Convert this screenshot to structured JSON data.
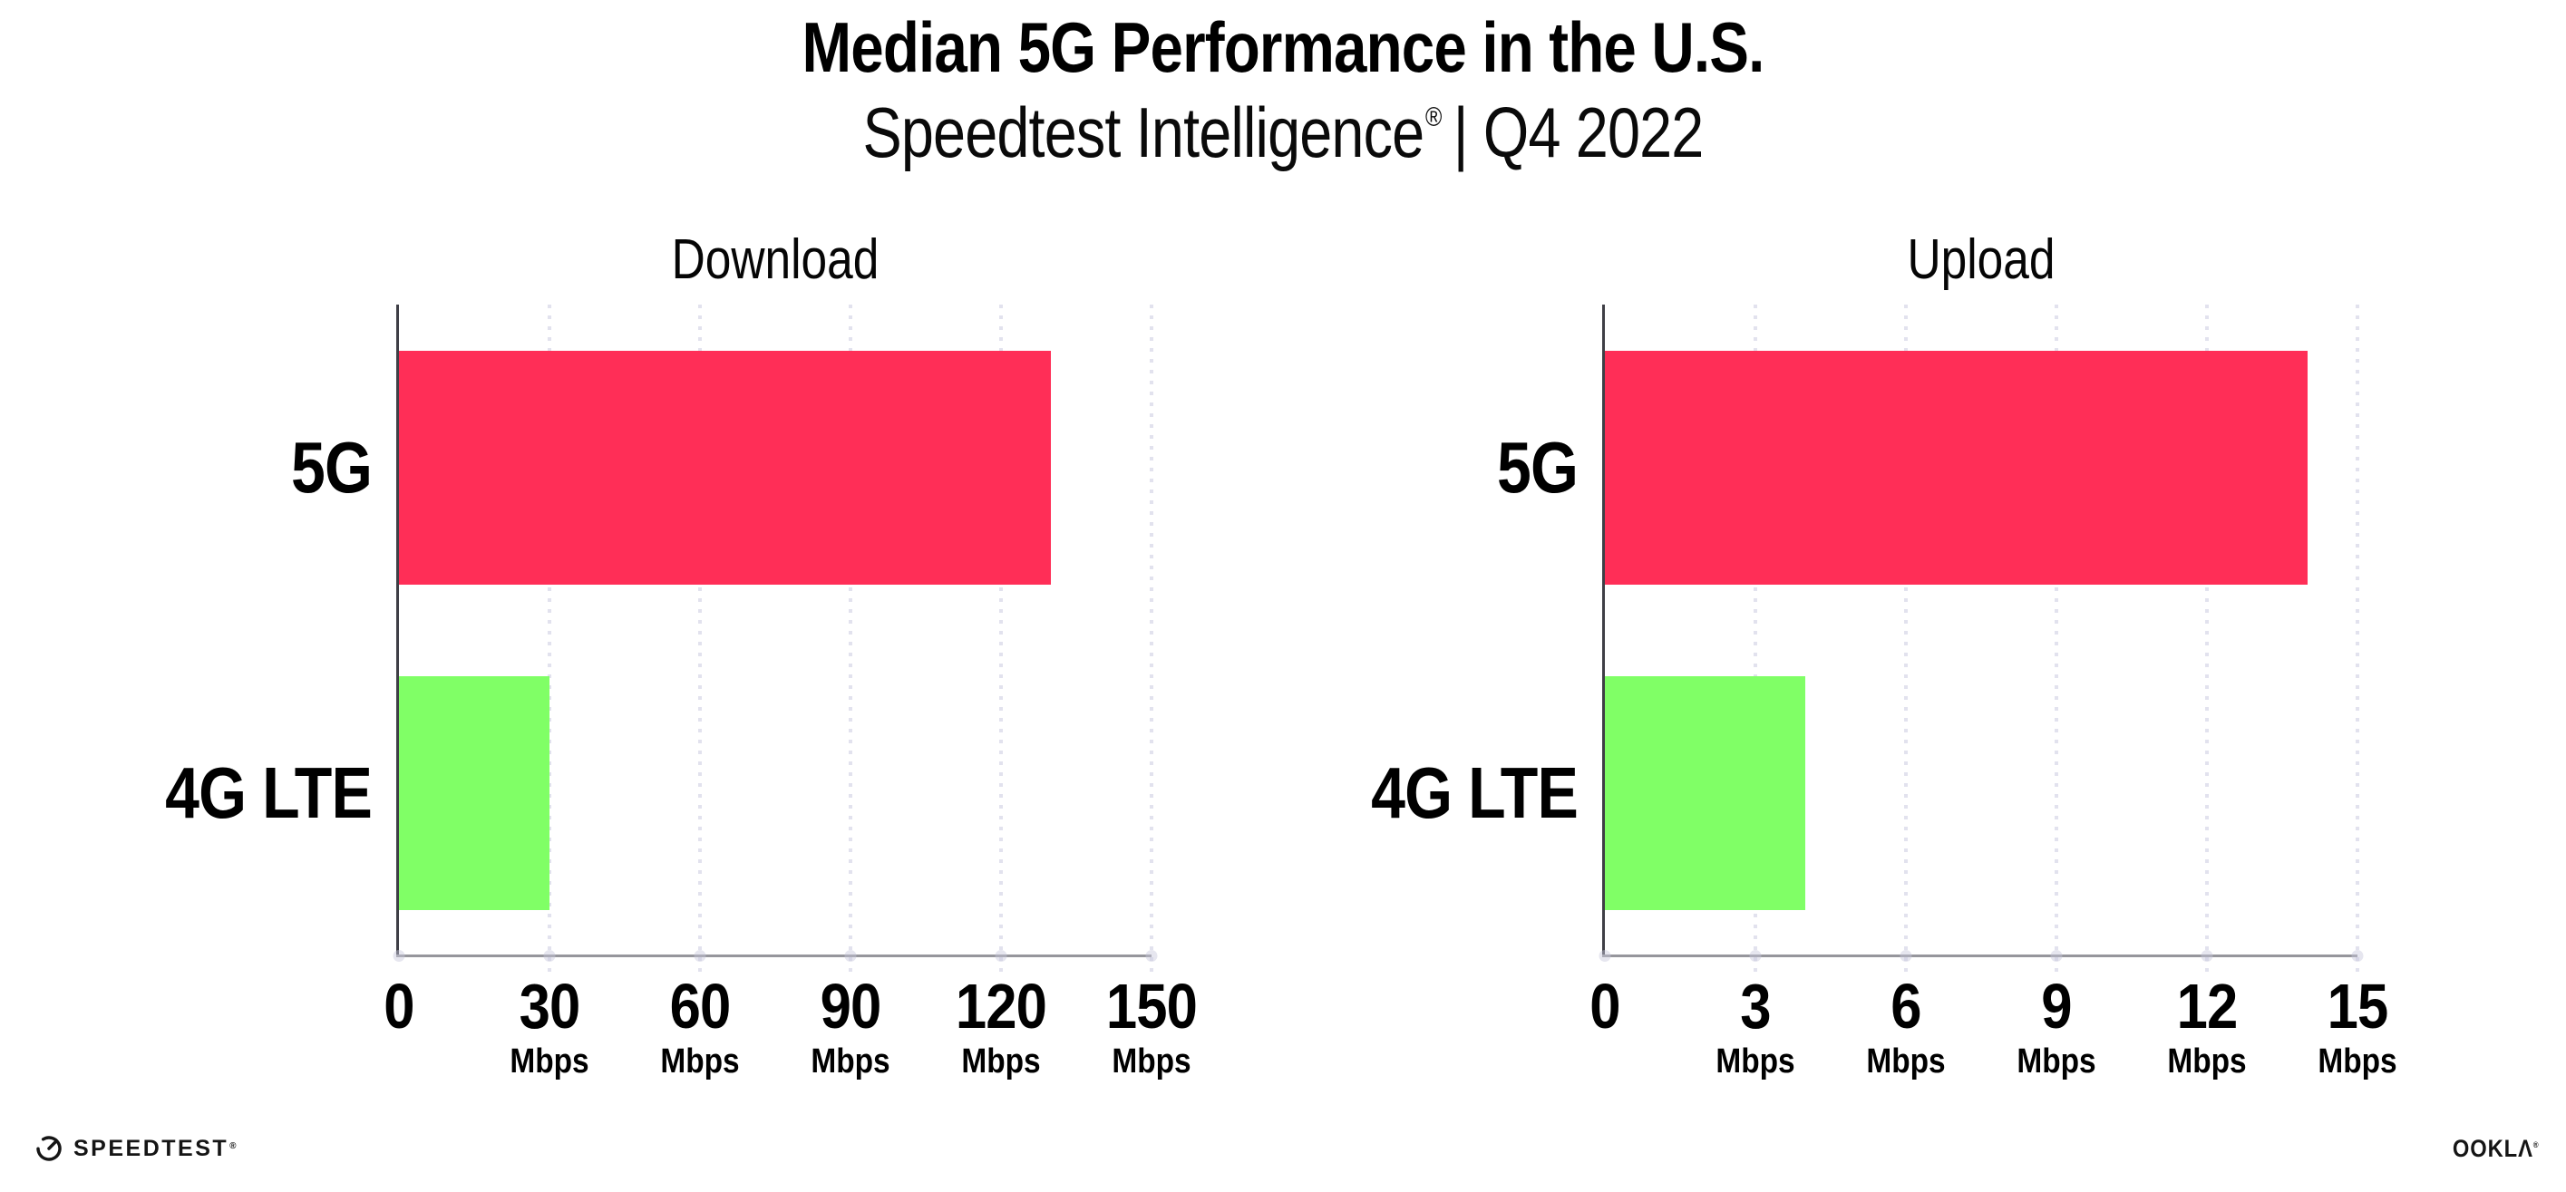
{
  "header": {
    "title": "Median 5G Performance in the U.S.",
    "subtitle_brand": "Speedtest Intelligence",
    "subtitle_reg": "®",
    "subtitle_rest": "| Q4 2022"
  },
  "chart_data": [
    {
      "type": "bar",
      "orientation": "horizontal",
      "title": "Download",
      "categories": [
        "5G",
        "4G LTE"
      ],
      "values": [
        130,
        30
      ],
      "unit": "Mbps",
      "xlim": [
        0,
        150
      ],
      "xticks": [
        0,
        30,
        60,
        90,
        120,
        150
      ],
      "bar_colors": [
        "#FF2E57",
        "#80FF66"
      ],
      "grid": "dotted-vertical",
      "legend": "none"
    },
    {
      "type": "bar",
      "orientation": "horizontal",
      "title": "Upload",
      "categories": [
        "5G",
        "4G LTE"
      ],
      "values": [
        14,
        4
      ],
      "unit": "Mbps",
      "xlim": [
        0,
        15
      ],
      "xticks": [
        0,
        3,
        6,
        9,
        12,
        15
      ],
      "bar_colors": [
        "#FF2E57",
        "#80FF66"
      ],
      "grid": "dotted-vertical",
      "legend": "none"
    }
  ],
  "colors": {
    "bar_5g": "#FF2E57",
    "bar_4g_lte": "#80FF66",
    "gridline": "#E2E2EE",
    "x_axis": "#96969C",
    "y_axis": "#3F3F46",
    "text": "#000000",
    "background": "#FFFFFF"
  },
  "footer": {
    "speedtest_label": "SPEEDTEST",
    "speedtest_mark": "®",
    "ookla_label": "OOKLΛ",
    "ookla_mark": "®"
  }
}
